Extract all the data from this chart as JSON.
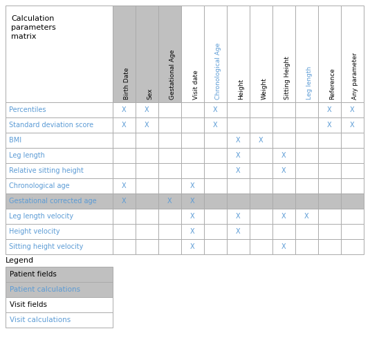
{
  "title": "Calculation\nparameters\nmatrix",
  "col_headers": [
    "Birth Date",
    "Sex",
    "Gestational Age",
    "Visit date",
    "Chronological Age",
    "Height",
    "Weight",
    "Sitting Height",
    "Leg length",
    "Reference",
    "Any parameter"
  ],
  "row_headers": [
    "Percentiles",
    "Standard deviation score",
    "BMI",
    "Leg length",
    "Relative sitting height",
    "Chronological age",
    "Gestational corrected age",
    "Leg length velocity",
    "Height velocity",
    "Sitting height velocity"
  ],
  "marks": [
    [
      1,
      1,
      0,
      0,
      1,
      0,
      0,
      0,
      0,
      1,
      1
    ],
    [
      1,
      1,
      0,
      0,
      1,
      0,
      0,
      0,
      0,
      1,
      1
    ],
    [
      0,
      0,
      0,
      0,
      0,
      1,
      1,
      0,
      0,
      0,
      0
    ],
    [
      0,
      0,
      0,
      0,
      0,
      1,
      0,
      1,
      0,
      0,
      0
    ],
    [
      0,
      0,
      0,
      0,
      0,
      1,
      0,
      1,
      0,
      0,
      0
    ],
    [
      1,
      0,
      0,
      1,
      0,
      0,
      0,
      0,
      0,
      0,
      0
    ],
    [
      1,
      0,
      1,
      1,
      0,
      0,
      0,
      0,
      0,
      0,
      0
    ],
    [
      0,
      0,
      0,
      1,
      0,
      1,
      0,
      1,
      1,
      0,
      0
    ],
    [
      0,
      0,
      0,
      1,
      0,
      1,
      0,
      0,
      0,
      0,
      0
    ],
    [
      0,
      0,
      0,
      1,
      0,
      0,
      0,
      1,
      0,
      0,
      0
    ]
  ],
  "row_bg": [
    "white",
    "white",
    "white",
    "white",
    "white",
    "white",
    "#c0c0c0",
    "white",
    "white",
    "white"
  ],
  "col_header_bg": [
    "#c0c0c0",
    "#c0c0c0",
    "#c0c0c0",
    "white",
    "white",
    "white",
    "white",
    "white",
    "white",
    "white",
    "white"
  ],
  "col_header_color": [
    "black",
    "black",
    "black",
    "black",
    "#5b9bd5",
    "black",
    "black",
    "black",
    "#5b9bd5",
    "black",
    "black"
  ],
  "legend_items": [
    {
      "label": "Patient fields",
      "bg": "#c0c0c0",
      "fg": "black"
    },
    {
      "label": "Patient calculations",
      "bg": "#c0c0c0",
      "fg": "#5b9bd5"
    },
    {
      "label": "Visit fields",
      "bg": "white",
      "fg": "black"
    },
    {
      "label": "Visit calculations",
      "bg": "white",
      "fg": "#5b9bd5"
    }
  ],
  "bg_color": "white",
  "border_color": "#aaaaaa",
  "mark_color": "#5b9bd5",
  "row_text_color": "#5b9bd5"
}
